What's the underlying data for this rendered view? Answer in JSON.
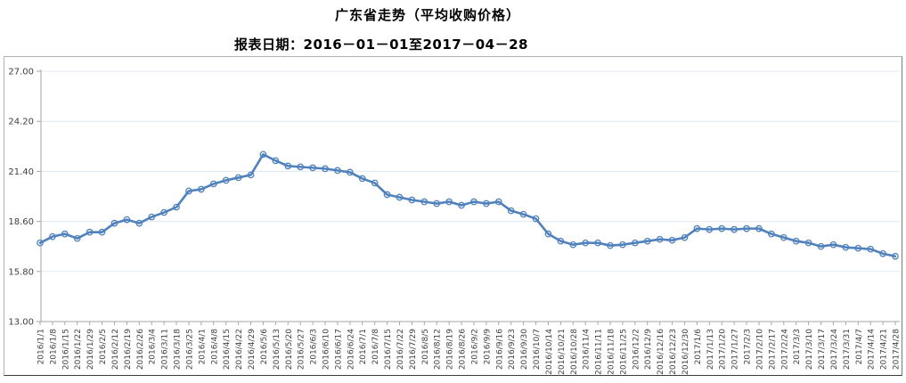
{
  "page": {
    "title": "广东省走势（平均收购价格）",
    "subtitle": "报表日期：2016－01－01至2017－04－28"
  },
  "chart_data": {
    "type": "line",
    "title": "广东省走势（平均收购价格）",
    "subtitle": "报表日期：2016－01－01至2017－04－28",
    "xlabel": "",
    "ylabel": "",
    "ylim": [
      13.0,
      27.0
    ],
    "ytick_labels": [
      "13.00",
      "15.80",
      "18.60",
      "21.40",
      "24.20",
      "27.00"
    ],
    "grid": true,
    "legend": "none",
    "line_color": "#4f81bd",
    "marker": "circle-open",
    "gridline_color": "#e1e8f2",
    "axis_color": "#a6a6a6",
    "x": [
      "2016/1/1",
      "2016/1/8",
      "2016/1/15",
      "2016/1/22",
      "2016/1/29",
      "2016/2/5",
      "2016/2/12",
      "2016/2/19",
      "2016/2/26",
      "2016/3/4",
      "2016/3/11",
      "2016/3/18",
      "2016/3/25",
      "2016/4/1",
      "2016/4/8",
      "2016/4/15",
      "2016/4/22",
      "2016/4/29",
      "2016/5/6",
      "2016/5/13",
      "2016/5/20",
      "2016/5/27",
      "2016/6/3",
      "2016/6/10",
      "2016/6/17",
      "2016/6/24",
      "2016/7/1",
      "2016/7/8",
      "2016/7/15",
      "2016/7/22",
      "2016/7/29",
      "2016/8/5",
      "2016/8/12",
      "2016/8/19",
      "2016/8/26",
      "2016/9/2",
      "2016/9/9",
      "2016/9/16",
      "2016/9/23",
      "2016/9/30",
      "2016/10/7",
      "2016/10/14",
      "2016/10/21",
      "2016/10/28",
      "2016/11/4",
      "2016/11/11",
      "2016/11/18",
      "2016/11/25",
      "2016/12/2",
      "2016/12/9",
      "2016/12/16",
      "2016/12/23",
      "2016/12/30",
      "2017/1/6",
      "2017/1/13",
      "2017/1/20",
      "2017/1/27",
      "2017/2/3",
      "2017/2/10",
      "2017/2/17",
      "2017/2/24",
      "2017/3/3",
      "2017/3/10",
      "2017/3/17",
      "2017/3/24",
      "2017/3/31",
      "2017/4/7",
      "2017/4/14",
      "2017/4/21",
      "2017/4/28"
    ],
    "series": [
      {
        "name": "平均收购价格",
        "values": [
          17.4,
          17.75,
          17.9,
          17.65,
          18.0,
          18.0,
          18.5,
          18.7,
          18.5,
          18.85,
          19.1,
          19.4,
          20.3,
          20.4,
          20.7,
          20.9,
          21.05,
          21.2,
          22.35,
          22.0,
          21.7,
          21.65,
          21.6,
          21.55,
          21.45,
          21.35,
          21.0,
          20.75,
          20.1,
          19.95,
          19.8,
          19.7,
          19.6,
          19.7,
          19.5,
          19.7,
          19.6,
          19.7,
          19.2,
          19.0,
          18.75,
          17.9,
          17.5,
          17.3,
          17.4,
          17.4,
          17.25,
          17.3,
          17.4,
          17.5,
          17.6,
          17.55,
          17.7,
          18.2,
          18.15,
          18.2,
          18.15,
          18.2,
          18.2,
          17.9,
          17.7,
          17.5,
          17.4,
          17.2,
          17.3,
          17.15,
          17.1,
          17.05,
          16.8,
          16.65
        ]
      }
    ]
  }
}
